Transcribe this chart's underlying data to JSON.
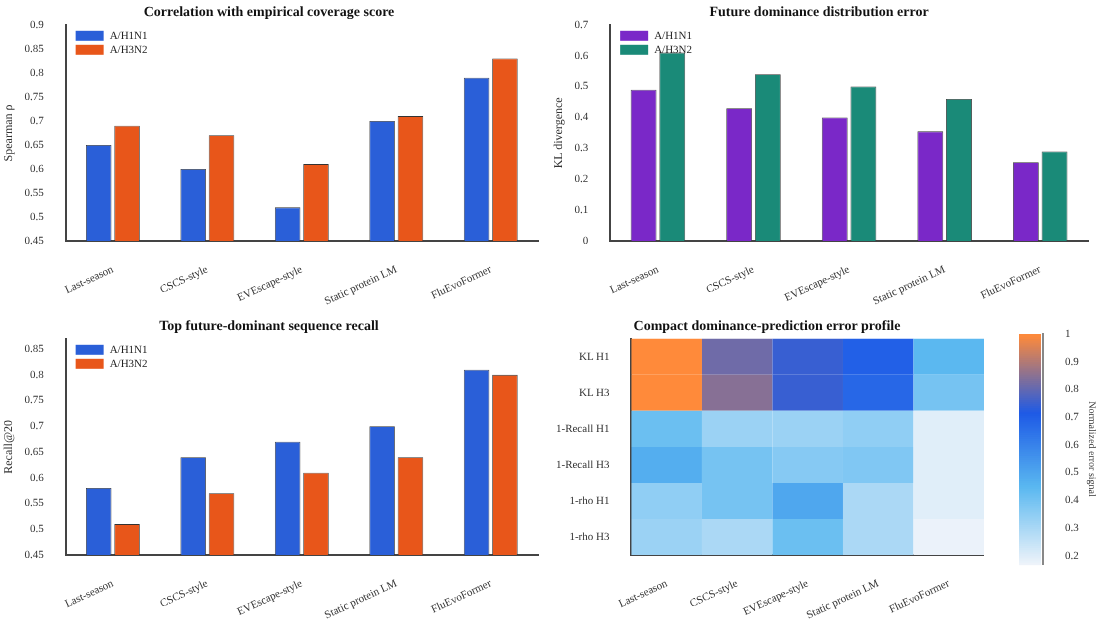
{
  "chart_data": [
    {
      "type": "bar",
      "title": "Correlation with empirical coverage score",
      "ylabel": "Spearman ρ",
      "categories": [
        "Last-season",
        "CSCS-style",
        "EVEscape-style",
        "Static protein LM",
        "FluEvoFormer"
      ],
      "series": [
        {
          "name": "A/H1N1",
          "color": "#2a5fd8",
          "values": [
            0.65,
            0.6,
            0.52,
            0.7,
            0.79
          ]
        },
        {
          "name": "A/H3N2",
          "color": "#e8561a",
          "values": [
            0.69,
            0.67,
            0.61,
            0.71,
            0.83
          ]
        }
      ],
      "ylim": [
        0.45,
        0.9
      ],
      "yticks": [
        0.45,
        0.5,
        0.55,
        0.6,
        0.65,
        0.7,
        0.75,
        0.8,
        0.85,
        0.9
      ],
      "legend": "top left"
    },
    {
      "type": "bar",
      "title": "Future dominance distribution error",
      "ylabel": "KL divergence",
      "categories": [
        "Last-season",
        "CSCS-style",
        "EVEscape-style",
        "Static protein LM",
        "FluEvoFormer"
      ],
      "series": [
        {
          "name": "A/H1N1",
          "color": "#7a28c8",
          "values": [
            0.49,
            0.43,
            0.4,
            0.355,
            0.255
          ]
        },
        {
          "name": "A/H3N2",
          "color": "#1a8a78",
          "values": [
            0.61,
            0.54,
            0.5,
            0.46,
            0.29
          ]
        }
      ],
      "ylim": [
        0,
        0.7
      ],
      "yticks": [
        0,
        0.1,
        0.2,
        0.3,
        0.4,
        0.5,
        0.6,
        0.7
      ],
      "legend": "top left"
    },
    {
      "type": "bar",
      "title": "Top future-dominant sequence recall",
      "ylabel": "Recall@20",
      "categories": [
        "Last-season",
        "CSCS-style",
        "EVEscape-style",
        "Static protein LM",
        "FluEvoFormer"
      ],
      "series": [
        {
          "name": "A/H1N1",
          "color": "#2a5fd8",
          "values": [
            0.58,
            0.64,
            0.67,
            0.7,
            0.81
          ]
        },
        {
          "name": "A/H3N2",
          "color": "#e8561a",
          "values": [
            0.51,
            0.57,
            0.61,
            0.64,
            0.8
          ]
        }
      ],
      "ylim": [
        0.45,
        0.87
      ],
      "yticks": [
        0.45,
        0.5,
        0.55,
        0.6,
        0.65,
        0.7,
        0.75,
        0.8,
        0.85
      ],
      "legend": "top left"
    },
    {
      "type": "heatmap",
      "title": "Compact dominance-prediction error profile",
      "clabel": "Normalized error signal",
      "categories": [
        "Last-season",
        "CSCS-style",
        "EVEscape-style",
        "Static protein LM",
        "FluEvoFormer"
      ],
      "y_categories": [
        "KL H1",
        "KL H3",
        "1-Recall H1",
        "1-Recall H3",
        "1-rho H1",
        "1-rho H3"
      ],
      "cells": [
        [
          1.0,
          0.82,
          0.75,
          0.7,
          0.45
        ],
        [
          1.0,
          0.85,
          0.75,
          0.68,
          0.4
        ],
        [
          0.42,
          0.33,
          0.33,
          0.35,
          0.2
        ],
        [
          0.48,
          0.4,
          0.37,
          0.38,
          0.2
        ],
        [
          0.35,
          0.4,
          0.5,
          0.3,
          0.2
        ],
        [
          0.33,
          0.3,
          0.42,
          0.3,
          0.18
        ]
      ],
      "clim": [
        0.17,
        1
      ],
      "cticks": [
        0.2,
        0.3,
        0.4,
        0.5,
        0.6,
        0.7,
        0.8,
        0.9,
        1
      ]
    }
  ]
}
